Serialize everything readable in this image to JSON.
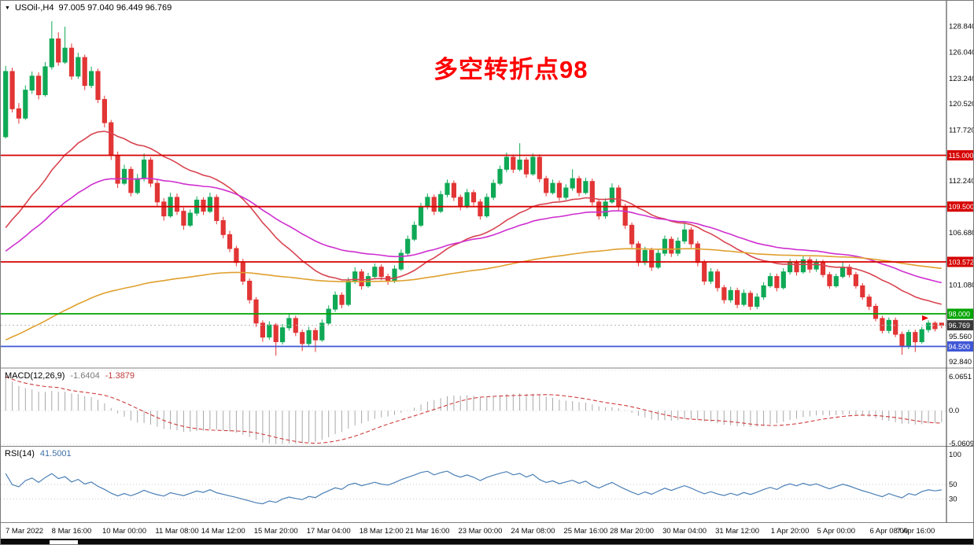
{
  "header": {
    "dropdown_icon": "▼",
    "symbol": "USOil-,H4",
    "ohlc_text": "97.005 97.040 96.449 96.769"
  },
  "annotation": {
    "text": "多空转折点98",
    "color": "#ff0000"
  },
  "chart_data": {
    "type": "candlestick",
    "symbol": "USOil-",
    "timeframe": "H4",
    "last_bar": {
      "open": 97.005,
      "high": 97.04,
      "low": 96.449,
      "close": 96.769
    },
    "main": {
      "ylim": [
        92.6,
        130.4
      ],
      "y_ticks": [
        "128.840",
        "126.040",
        "123.240",
        "120.520",
        "117.720",
        "112.240",
        "106.680",
        "101.080",
        "95.560",
        "92.840"
      ],
      "levels": [
        {
          "price": 115.0,
          "label": "115.000",
          "color": "#d60000"
        },
        {
          "price": 109.5,
          "label": "109.500",
          "color": "#d60000"
        },
        {
          "price": 103.572,
          "label": "103.572",
          "color": "#d60000"
        },
        {
          "price": 98.0,
          "label": "98.000",
          "color": "#00a400"
        },
        {
          "price": 94.5,
          "label": "94.500",
          "color": "#3f57d6"
        }
      ],
      "current_price": {
        "value": 96.769,
        "label": "96.769",
        "badge_color": "#3a3a3a",
        "line_color": "#b5b5b5"
      },
      "up_color": "#0fa956",
      "down_color": "#e23535",
      "moving_averages": [
        {
          "name": "ma-fast",
          "period": 28,
          "seed": 106.0,
          "color": "#d84450"
        },
        {
          "name": "ma-mid",
          "period": 55,
          "seed": 104.0,
          "color": "#cf2fcf"
        },
        {
          "name": "ma-slow",
          "period": 150,
          "seed": 94.8,
          "color": "#dfa02e"
        }
      ],
      "arrow_marker": {
        "bar": 140,
        "price": 97.55,
        "color": "#e80000"
      },
      "x_labels": [
        {
          "text": "7 Mar 2022",
          "bar": 2
        },
        {
          "text": "8 Mar 16:00",
          "bar": 10
        },
        {
          "text": "10 Mar 00:00",
          "bar": 18
        },
        {
          "text": "11 Mar 08:00",
          "bar": 26
        },
        {
          "text": "14 Mar 12:00",
          "bar": 33
        },
        {
          "text": "15 Mar 20:00",
          "bar": 41
        },
        {
          "text": "17 Mar 04:00",
          "bar": 49
        },
        {
          "text": "18 Mar 12:00",
          "bar": 57
        },
        {
          "text": "21 Mar 16:00",
          "bar": 64
        },
        {
          "text": "23 Mar 00:00",
          "bar": 72
        },
        {
          "text": "24 Mar 08:00",
          "bar": 80
        },
        {
          "text": "25 Mar 16:00",
          "bar": 88
        },
        {
          "text": "28 Mar 20:00",
          "bar": 95
        },
        {
          "text": "30 Mar 04:00",
          "bar": 103
        },
        {
          "text": "31 Mar 12:00",
          "bar": 111
        },
        {
          "text": "1 Apr 20:00",
          "bar": 119
        },
        {
          "text": "5 Apr 00:00",
          "bar": 126
        },
        {
          "text": "6 Apr 08:00",
          "bar": 134
        },
        {
          "text": "7 Apr 16:00",
          "bar": 142
        }
      ],
      "ohlc": [
        [
          117.0,
          124.6,
          116.8,
          124.0
        ],
        [
          124.0,
          124.4,
          119.6,
          120.0
        ],
        [
          120.0,
          120.6,
          118.4,
          119.0
        ],
        [
          119.0,
          122.5,
          118.8,
          122.0
        ],
        [
          122.0,
          124.0,
          121.6,
          123.5
        ],
        [
          123.5,
          123.9,
          121.0,
          121.5
        ],
        [
          121.5,
          125.0,
          121.3,
          124.5
        ],
        [
          124.5,
          129.4,
          124.2,
          127.5
        ],
        [
          127.5,
          128.2,
          124.6,
          125.0
        ],
        [
          125.0,
          128.8,
          124.8,
          126.5
        ],
        [
          126.5,
          127.0,
          123.1,
          123.5
        ],
        [
          123.5,
          126.0,
          123.2,
          125.5
        ],
        [
          125.5,
          125.8,
          122.0,
          122.5
        ],
        [
          122.5,
          124.5,
          122.2,
          124.0
        ],
        [
          124.0,
          124.3,
          120.6,
          121.0
        ],
        [
          121.0,
          121.4,
          118.0,
          118.5
        ],
        [
          118.5,
          118.8,
          114.5,
          115.0
        ],
        [
          115.0,
          115.4,
          111.5,
          112.0
        ],
        [
          112.0,
          114.0,
          111.8,
          113.5
        ],
        [
          113.5,
          113.8,
          110.6,
          111.0
        ],
        [
          111.0,
          113.0,
          110.8,
          112.5
        ],
        [
          112.5,
          115.2,
          112.2,
          114.5
        ],
        [
          114.5,
          114.8,
          111.6,
          112.0
        ],
        [
          112.0,
          112.4,
          109.5,
          110.0
        ],
        [
          110.0,
          110.4,
          108.0,
          108.5
        ],
        [
          108.5,
          111.0,
          108.3,
          110.5
        ],
        [
          110.5,
          110.9,
          108.6,
          109.0
        ],
        [
          109.0,
          109.4,
          107.0,
          107.5
        ],
        [
          107.5,
          109.2,
          107.3,
          108.8
        ],
        [
          108.8,
          110.6,
          108.5,
          110.2
        ],
        [
          110.2,
          110.5,
          108.6,
          109.0
        ],
        [
          109.0,
          111.0,
          108.8,
          110.5
        ],
        [
          110.5,
          110.8,
          107.6,
          108.0
        ],
        [
          108.0,
          108.4,
          106.1,
          106.5
        ],
        [
          106.5,
          106.9,
          104.6,
          105.0
        ],
        [
          105.0,
          105.3,
          103.1,
          103.5
        ],
        [
          103.5,
          103.9,
          101.1,
          101.5
        ],
        [
          101.5,
          101.8,
          99.1,
          99.5
        ],
        [
          99.5,
          99.8,
          96.6,
          97.0
        ],
        [
          97.0,
          97.3,
          95.0,
          95.5
        ],
        [
          95.5,
          97.2,
          95.2,
          96.8
        ],
        [
          96.8,
          97.0,
          93.5,
          95.0
        ],
        [
          95.0,
          96.9,
          94.7,
          96.5
        ],
        [
          96.5,
          98.0,
          96.2,
          97.5
        ],
        [
          97.5,
          97.8,
          95.6,
          96.0
        ],
        [
          96.0,
          96.3,
          94.0,
          94.8
        ],
        [
          94.8,
          96.6,
          94.5,
          96.2
        ],
        [
          96.2,
          96.5,
          93.9,
          95.2
        ],
        [
          95.2,
          97.4,
          95.0,
          97.0
        ],
        [
          97.0,
          98.9,
          96.8,
          98.5
        ],
        [
          98.5,
          100.4,
          98.2,
          100.0
        ],
        [
          100.0,
          100.3,
          98.6,
          99.0
        ],
        [
          99.0,
          101.9,
          98.8,
          101.5
        ],
        [
          101.5,
          103.0,
          101.2,
          102.5
        ],
        [
          102.5,
          102.8,
          100.6,
          101.0
        ],
        [
          101.0,
          102.4,
          100.8,
          102.0
        ],
        [
          102.0,
          103.4,
          101.8,
          103.0
        ],
        [
          103.0,
          103.3,
          101.6,
          102.0
        ],
        [
          102.0,
          102.3,
          101.1,
          101.5
        ],
        [
          101.5,
          103.2,
          101.3,
          102.8
        ],
        [
          102.8,
          104.9,
          102.6,
          104.5
        ],
        [
          104.5,
          106.4,
          104.2,
          106.0
        ],
        [
          106.0,
          107.9,
          105.8,
          107.5
        ],
        [
          107.5,
          109.9,
          107.3,
          109.5
        ],
        [
          109.5,
          110.9,
          109.2,
          110.5
        ],
        [
          110.5,
          110.8,
          108.6,
          109.0
        ],
        [
          109.0,
          111.2,
          108.8,
          110.8
        ],
        [
          110.8,
          112.4,
          110.5,
          112.0
        ],
        [
          112.0,
          112.3,
          110.1,
          110.5
        ],
        [
          110.5,
          110.8,
          109.1,
          109.5
        ],
        [
          109.5,
          111.4,
          109.3,
          111.0
        ],
        [
          111.0,
          111.3,
          109.6,
          110.0
        ],
        [
          110.0,
          110.3,
          108.1,
          108.5
        ],
        [
          108.5,
          110.9,
          108.3,
          110.5
        ],
        [
          110.5,
          112.4,
          110.2,
          112.0
        ],
        [
          112.0,
          113.9,
          111.8,
          113.5
        ],
        [
          113.5,
          115.3,
          113.2,
          114.8
        ],
        [
          114.8,
          115.1,
          113.1,
          113.5
        ],
        [
          113.5,
          116.3,
          113.3,
          114.5
        ],
        [
          114.5,
          114.8,
          112.6,
          113.0
        ],
        [
          113.0,
          115.2,
          112.8,
          114.8
        ],
        [
          114.8,
          115.1,
          112.1,
          112.5
        ],
        [
          112.5,
          112.8,
          110.6,
          111.0
        ],
        [
          111.0,
          112.4,
          110.8,
          112.0
        ],
        [
          112.0,
          112.3,
          110.1,
          110.5
        ],
        [
          110.5,
          111.9,
          110.2,
          111.5
        ],
        [
          111.5,
          113.5,
          111.2,
          112.5
        ],
        [
          112.5,
          112.8,
          110.6,
          111.0
        ],
        [
          111.0,
          112.6,
          110.8,
          112.2
        ],
        [
          112.2,
          112.5,
          109.6,
          110.0
        ],
        [
          110.0,
          110.3,
          108.1,
          108.5
        ],
        [
          108.5,
          110.4,
          108.2,
          110.0
        ],
        [
          110.0,
          112.0,
          109.8,
          111.5
        ],
        [
          111.5,
          111.8,
          109.1,
          109.5
        ],
        [
          109.5,
          109.8,
          107.1,
          107.5
        ],
        [
          107.5,
          107.8,
          105.1,
          105.5
        ],
        [
          105.5,
          105.8,
          103.1,
          103.5
        ],
        [
          103.5,
          105.2,
          103.2,
          104.8
        ],
        [
          104.8,
          105.1,
          102.6,
          103.0
        ],
        [
          103.0,
          104.9,
          102.8,
          104.5
        ],
        [
          104.5,
          106.4,
          104.2,
          106.0
        ],
        [
          106.0,
          106.3,
          104.1,
          104.5
        ],
        [
          104.5,
          106.2,
          104.2,
          105.8
        ],
        [
          105.8,
          107.9,
          105.5,
          107.0
        ],
        [
          107.0,
          107.3,
          105.1,
          105.5
        ],
        [
          105.5,
          105.8,
          103.1,
          103.5
        ],
        [
          103.5,
          103.8,
          101.1,
          101.5
        ],
        [
          101.5,
          102.9,
          101.2,
          102.5
        ],
        [
          102.5,
          102.8,
          100.4,
          100.8
        ],
        [
          100.8,
          101.1,
          99.1,
          99.5
        ],
        [
          99.5,
          100.9,
          99.2,
          100.5
        ],
        [
          100.5,
          100.8,
          98.6,
          99.0
        ],
        [
          99.0,
          100.6,
          98.8,
          100.2
        ],
        [
          100.2,
          100.5,
          98.4,
          98.8
        ],
        [
          98.8,
          100.2,
          98.5,
          99.8
        ],
        [
          99.8,
          101.4,
          99.5,
          101.0
        ],
        [
          101.0,
          102.4,
          100.8,
          102.0
        ],
        [
          102.0,
          102.3,
          100.4,
          100.8
        ],
        [
          100.8,
          102.9,
          100.6,
          102.5
        ],
        [
          102.5,
          103.9,
          102.2,
          103.5
        ],
        [
          103.5,
          103.8,
          102.1,
          102.5
        ],
        [
          102.5,
          104.2,
          102.3,
          103.8
        ],
        [
          103.8,
          104.1,
          102.4,
          102.8
        ],
        [
          102.8,
          103.9,
          102.5,
          103.5
        ],
        [
          103.5,
          103.8,
          101.9,
          102.2
        ],
        [
          102.2,
          102.5,
          100.7,
          101.0
        ],
        [
          101.0,
          102.3,
          100.8,
          102.0
        ],
        [
          102.0,
          103.6,
          101.8,
          103.0
        ],
        [
          103.0,
          103.3,
          101.9,
          102.2
        ],
        [
          102.2,
          102.5,
          100.7,
          101.0
        ],
        [
          101.0,
          101.3,
          99.5,
          99.8
        ],
        [
          99.8,
          100.1,
          98.4,
          98.8
        ],
        [
          98.8,
          99.1,
          97.2,
          97.5
        ],
        [
          97.5,
          97.8,
          95.9,
          96.2
        ],
        [
          96.2,
          97.6,
          95.9,
          97.3
        ],
        [
          97.3,
          97.6,
          95.5,
          95.8
        ],
        [
          95.8,
          96.1,
          93.6,
          94.5
        ],
        [
          94.5,
          96.3,
          94.2,
          96.0
        ],
        [
          96.0,
          96.3,
          93.9,
          95.0
        ],
        [
          95.0,
          96.6,
          94.8,
          96.3
        ],
        [
          96.3,
          97.3,
          96.0,
          97.0
        ],
        [
          97.0,
          97.2,
          96.1,
          96.4
        ],
        [
          97.005,
          97.04,
          96.449,
          96.769
        ]
      ]
    },
    "macd": {
      "label": "MACD(12,26,9)",
      "value": "-1.6404",
      "signal_value": "-1.3879",
      "fast": 12,
      "slow": 26,
      "signal": 9,
      "seed_offset": 5.5,
      "ylim": [
        -5.0609,
        6.0651
      ],
      "y_ticks": [
        {
          "v": 6.0651,
          "t": "6.0651"
        },
        {
          "v": 0,
          "t": "0.0"
        },
        {
          "v": -5.0609,
          "t": "-5.0609"
        }
      ],
      "hist_color": "#a8a8a8",
      "signal_color": "#cf3b3b"
    },
    "rsi": {
      "label": "RSI(14)",
      "value": "41.5001",
      "period": 14,
      "ylim": [
        0,
        100
      ],
      "y_ticks": [
        {
          "v": 100,
          "t": "100"
        },
        {
          "v": 50,
          "t": "50"
        },
        {
          "v": 30,
          "t": "30"
        }
      ],
      "levels": [
        50,
        30
      ],
      "line_color": "#4a7fb5"
    }
  }
}
